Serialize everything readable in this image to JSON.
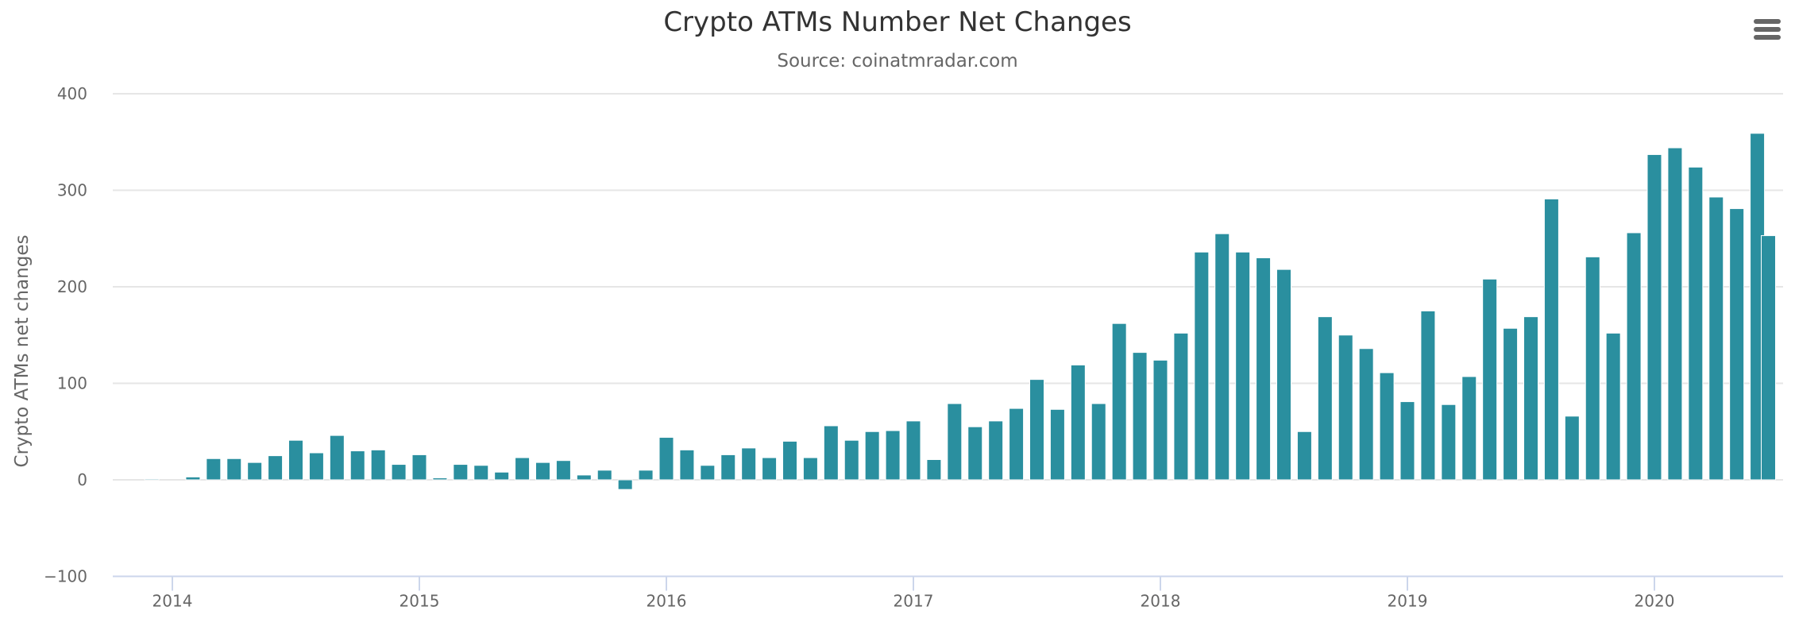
{
  "header": {
    "title": "Crypto ATMs Number Net Changes",
    "subtitle": "Source: coinatmradar.com",
    "menu_icon": "hamburger-menu-icon"
  },
  "colors": {
    "bar": "#2a8f9f",
    "grid": "#e6e6e6",
    "axis": "#ccd6eb",
    "text": "#666666",
    "title": "#333333"
  },
  "chart_data": {
    "type": "bar",
    "title": "Crypto ATMs Number Net Changes",
    "subtitle": "Source: coinatmradar.com",
    "xlabel": "",
    "ylabel": "Crypto ATMs net changes",
    "ylim": [
      -100,
      400
    ],
    "yticks": [
      -100,
      0,
      100,
      200,
      300,
      400
    ],
    "xticks": [
      "2014",
      "2015",
      "2016",
      "2017",
      "2018",
      "2019",
      "2020"
    ],
    "grid": true,
    "legend": "none",
    "series": [
      {
        "name": "Crypto ATMs net changes",
        "start": "2013-12",
        "frequency": "monthly",
        "values": [
          1,
          0,
          3,
          22,
          22,
          18,
          25,
          41,
          28,
          46,
          30,
          31,
          16,
          26,
          2,
          16,
          15,
          8,
          23,
          18,
          20,
          5,
          10,
          -10,
          10,
          44,
          31,
          15,
          26,
          33,
          23,
          40,
          23,
          56,
          41,
          50,
          51,
          61,
          21,
          79,
          55,
          61,
          74,
          104,
          73,
          119,
          79,
          162,
          132,
          124,
          152,
          236,
          255,
          236,
          230,
          218,
          50,
          169,
          150,
          136,
          111,
          81,
          175,
          78,
          107,
          208,
          157,
          169,
          291,
          66,
          231,
          152,
          256,
          337,
          344,
          324,
          293,
          281,
          359,
          253
        ]
      }
    ]
  }
}
